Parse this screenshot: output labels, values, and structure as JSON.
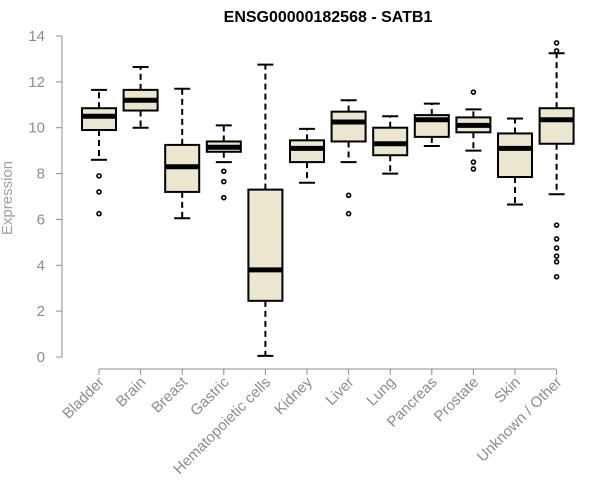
{
  "chart_data": {
    "type": "box",
    "title": "ENSG00000182568 - SATB1",
    "xlabel": "",
    "ylabel": "Expression",
    "ylim": [
      0,
      14
    ],
    "yticks": [
      0,
      2,
      4,
      6,
      8,
      10,
      12,
      14
    ],
    "grid": false,
    "categories": [
      "Bladder",
      "Brain",
      "Breast",
      "Gastric",
      "Hematopoietic cells",
      "Kidney",
      "Liver",
      "Lung",
      "Pancreas",
      "Prostate",
      "Skin",
      "Unknown / Other"
    ],
    "boxes": [
      {
        "whisker_low": 8.6,
        "q1": 9.9,
        "median": 10.5,
        "q3": 10.85,
        "whisker_high": 11.65,
        "outliers": [
          7.9,
          7.2,
          6.25
        ]
      },
      {
        "whisker_low": 10.0,
        "q1": 10.75,
        "median": 11.2,
        "q3": 11.65,
        "whisker_high": 12.65,
        "outliers": []
      },
      {
        "whisker_low": 6.05,
        "q1": 7.2,
        "median": 8.3,
        "q3": 9.25,
        "whisker_high": 11.7,
        "outliers": []
      },
      {
        "whisker_low": 8.5,
        "q1": 8.95,
        "median": 9.15,
        "q3": 9.4,
        "whisker_high": 10.1,
        "outliers": [
          8.1,
          7.65,
          6.95
        ]
      },
      {
        "whisker_low": 0.05,
        "q1": 2.45,
        "median": 3.8,
        "q3": 7.3,
        "whisker_high": 12.75,
        "outliers": []
      },
      {
        "whisker_low": 7.6,
        "q1": 8.5,
        "median": 9.1,
        "q3": 9.45,
        "whisker_high": 9.95,
        "outliers": []
      },
      {
        "whisker_low": 8.5,
        "q1": 9.4,
        "median": 10.25,
        "q3": 10.7,
        "whisker_high": 11.2,
        "outliers": [
          7.05,
          6.25
        ]
      },
      {
        "whisker_low": 8.0,
        "q1": 8.8,
        "median": 9.3,
        "q3": 10.0,
        "whisker_high": 10.5,
        "outliers": []
      },
      {
        "whisker_low": 9.2,
        "q1": 9.6,
        "median": 10.35,
        "q3": 10.55,
        "whisker_high": 11.05,
        "outliers": []
      },
      {
        "whisker_low": 9.0,
        "q1": 9.8,
        "median": 10.1,
        "q3": 10.45,
        "whisker_high": 10.8,
        "outliers": [
          11.55,
          8.5,
          8.2
        ]
      },
      {
        "whisker_low": 6.65,
        "q1": 7.85,
        "median": 9.1,
        "q3": 9.75,
        "whisker_high": 10.4,
        "outliers": []
      },
      {
        "whisker_low": 7.1,
        "q1": 9.3,
        "median": 10.35,
        "q3": 10.85,
        "whisker_high": 13.25,
        "outliers": [
          13.7,
          13.35,
          5.75,
          5.15,
          4.75,
          4.4,
          4.15,
          3.5
        ]
      }
    ],
    "colors": {
      "box_fill": "#ede6cf",
      "box_stroke": "#000000",
      "median": "#000000",
      "axis": "#8c8c8c",
      "text": "#8c8c8c"
    }
  }
}
